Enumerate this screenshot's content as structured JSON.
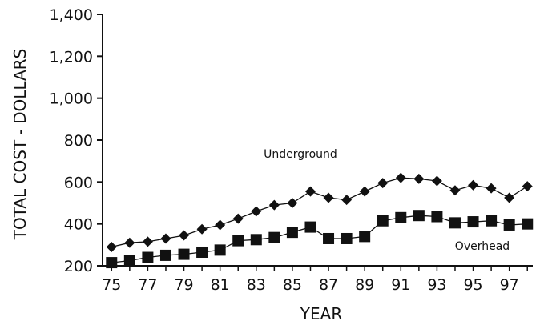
{
  "chart_data": {
    "type": "line",
    "title": "",
    "xlabel": "YEAR",
    "ylabel": "TOTAL COST - DOLLARS",
    "x": [
      75,
      76,
      77,
      78,
      79,
      80,
      81,
      82,
      83,
      84,
      85,
      86,
      87,
      88,
      89,
      90,
      91,
      92,
      93,
      94,
      95,
      96,
      97,
      98
    ],
    "x_tick_labels": [
      "75",
      "77",
      "79",
      "81",
      "83",
      "85",
      "87",
      "89",
      "91",
      "93",
      "95",
      "97"
    ],
    "y_tick_labels": [
      "200",
      "400",
      "600",
      "800",
      "1,000",
      "1,200",
      "1,400"
    ],
    "ylim": [
      200,
      1400
    ],
    "xlim": [
      74.5,
      98.3
    ],
    "grid": false,
    "legend": "none",
    "series": [
      {
        "name": "Underground",
        "marker": "diamond",
        "values": [
          290,
          310,
          315,
          330,
          345,
          375,
          395,
          425,
          460,
          490,
          500,
          555,
          525,
          515,
          555,
          595,
          620,
          615,
          605,
          560,
          585,
          570,
          525,
          580
        ]
      },
      {
        "name": "Overhead",
        "marker": "square",
        "values": [
          215,
          225,
          240,
          250,
          255,
          265,
          275,
          320,
          325,
          335,
          360,
          385,
          330,
          330,
          340,
          415,
          430,
          440,
          435,
          405,
          410,
          415,
          395,
          400
        ]
      }
    ],
    "colors": {
      "line": "#111111",
      "marker": "#111111"
    }
  }
}
